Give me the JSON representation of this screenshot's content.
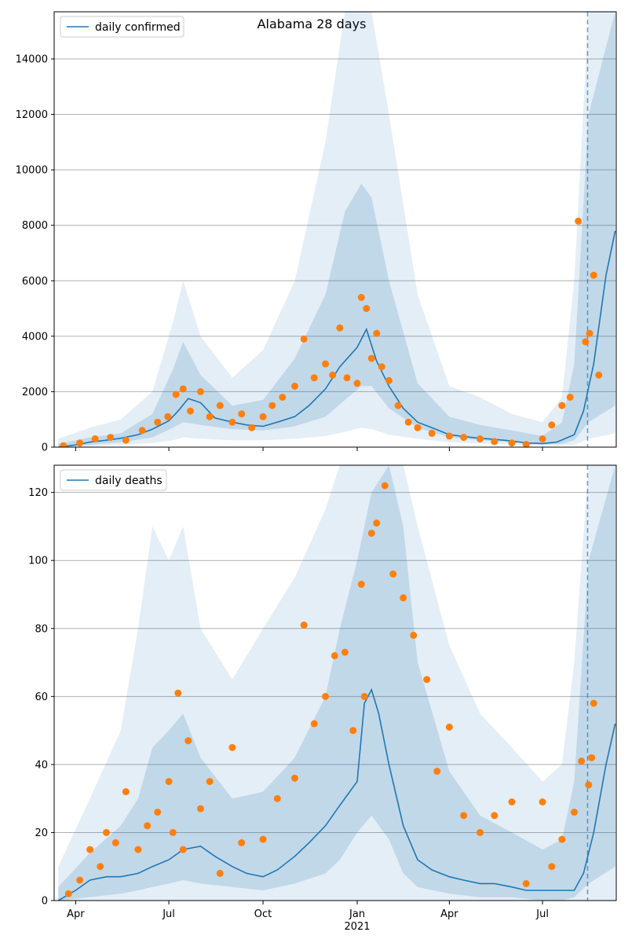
{
  "figure": {
    "title": "Alabama 28 days"
  },
  "colors": {
    "line": "#1f77b4",
    "points": "#ff7f0e",
    "band": "#1f77b4",
    "grid": "#b0b0b0"
  },
  "chart_data": [
    {
      "type": "line",
      "title": "Alabama 28 days",
      "legend": {
        "label": "daily confirmed",
        "placement": "top-left"
      },
      "ylim": [
        0,
        15700
      ],
      "y_ticks": [
        0,
        2000,
        4000,
        6000,
        8000,
        10000,
        12000,
        14000
      ],
      "y_tick_labels": [
        "0",
        "2000",
        "4000",
        "6000",
        "8000",
        "10000",
        "12000",
        "14000"
      ],
      "grid": "horizontal",
      "forecast_start": "2021-08-14",
      "series": [
        {
          "name": "daily confirmed",
          "role": "model-median",
          "x": [
            "2020-03-15",
            "2020-04-01",
            "2020-04-15",
            "2020-05-01",
            "2020-05-15",
            "2020-06-01",
            "2020-06-15",
            "2020-07-01",
            "2020-07-10",
            "2020-07-20",
            "2020-08-01",
            "2020-08-15",
            "2020-09-01",
            "2020-09-15",
            "2020-10-01",
            "2020-10-15",
            "2020-11-01",
            "2020-11-15",
            "2020-12-01",
            "2020-12-15",
            "2021-01-01",
            "2021-01-10",
            "2021-01-20",
            "2021-02-01",
            "2021-02-15",
            "2021-03-01",
            "2021-03-15",
            "2021-04-01",
            "2021-04-15",
            "2021-05-01",
            "2021-05-15",
            "2021-06-01",
            "2021-06-15",
            "2021-07-01",
            "2021-07-15",
            "2021-08-01",
            "2021-08-10",
            "2021-08-20",
            "2021-09-01",
            "2021-09-10"
          ],
          "y": [
            0,
            80,
            180,
            250,
            320,
            450,
            650,
            950,
            1300,
            1750,
            1600,
            1050,
            900,
            800,
            750,
            900,
            1100,
            1500,
            2100,
            2900,
            3600,
            4250,
            3100,
            2200,
            1400,
            900,
            700,
            450,
            380,
            320,
            280,
            220,
            150,
            130,
            180,
            450,
            1300,
            3000,
            6200,
            7800
          ]
        },
        {
          "name": "",
          "role": "observed",
          "x": [
            "2020-03-20",
            "2020-04-05",
            "2020-04-20",
            "2020-05-05",
            "2020-05-20",
            "2020-06-05",
            "2020-06-20",
            "2020-06-30",
            "2020-07-08",
            "2020-07-15",
            "2020-07-22",
            "2020-08-01",
            "2020-08-10",
            "2020-08-20",
            "2020-09-01",
            "2020-09-10",
            "2020-09-20",
            "2020-10-01",
            "2020-10-10",
            "2020-10-20",
            "2020-11-01",
            "2020-11-10",
            "2020-11-20",
            "2020-12-01",
            "2020-12-08",
            "2020-12-15",
            "2020-12-22",
            "2021-01-01",
            "2021-01-05",
            "2021-01-10",
            "2021-01-15",
            "2021-01-20",
            "2021-01-25",
            "2021-02-01",
            "2021-02-10",
            "2021-02-20",
            "2021-03-01",
            "2021-03-15",
            "2021-04-01",
            "2021-04-15",
            "2021-05-01",
            "2021-05-15",
            "2021-06-01",
            "2021-06-15",
            "2021-07-01",
            "2021-07-10",
            "2021-07-20",
            "2021-07-28",
            "2021-08-05",
            "2021-08-12",
            "2021-08-16",
            "2021-08-20",
            "2021-08-25"
          ],
          "y": [
            50,
            150,
            300,
            350,
            250,
            600,
            900,
            1100,
            1900,
            2100,
            1300,
            2000,
            1100,
            1500,
            900,
            1200,
            700,
            1100,
            1500,
            1800,
            2200,
            3900,
            2500,
            3000,
            2600,
            4300,
            2500,
            2300,
            5400,
            5000,
            3200,
            4100,
            2900,
            2400,
            1500,
            900,
            700,
            500,
            400,
            350,
            300,
            200,
            150,
            100,
            300,
            800,
            1500,
            1800,
            8150,
            3800,
            4100,
            6200,
            2600
          ]
        }
      ],
      "bands": [
        {
          "name": "outer",
          "x": [
            "2020-03-15",
            "2020-04-15",
            "2020-05-15",
            "2020-06-15",
            "2020-07-05",
            "2020-07-15",
            "2020-08-01",
            "2020-09-01",
            "2020-10-01",
            "2020-11-01",
            "2020-12-01",
            "2020-12-20",
            "2021-01-05",
            "2021-01-15",
            "2021-02-01",
            "2021-03-01",
            "2021-04-01",
            "2021-05-01",
            "2021-06-01",
            "2021-07-01",
            "2021-07-20",
            "2021-08-01",
            "2021-08-15",
            "2021-09-10"
          ],
          "lo": [
            0,
            30,
            80,
            150,
            250,
            350,
            300,
            250,
            250,
            300,
            400,
            550,
            700,
            650,
            450,
            300,
            180,
            140,
            100,
            50,
            60,
            80,
            300,
            500
          ],
          "hi": [
            300,
            700,
            1000,
            2000,
            4500,
            6000,
            4000,
            2500,
            3500,
            6000,
            11000,
            15700,
            15700,
            15700,
            12000,
            5500,
            2200,
            1800,
            1200,
            900,
            1800,
            6000,
            15700,
            15700
          ]
        },
        {
          "name": "inner",
          "x": [
            "2020-03-15",
            "2020-04-15",
            "2020-05-15",
            "2020-06-15",
            "2020-07-05",
            "2020-07-15",
            "2020-08-01",
            "2020-09-01",
            "2020-10-01",
            "2020-11-01",
            "2020-12-01",
            "2020-12-20",
            "2021-01-05",
            "2021-01-15",
            "2021-02-01",
            "2021-03-01",
            "2021-04-01",
            "2021-05-01",
            "2021-06-01",
            "2021-07-01",
            "2021-07-20",
            "2021-08-01",
            "2021-08-15",
            "2021-09-10"
          ],
          "lo": [
            0,
            80,
            180,
            350,
            700,
            900,
            800,
            650,
            600,
            750,
            1100,
            1700,
            2200,
            2200,
            1400,
            700,
            350,
            250,
            180,
            100,
            120,
            250,
            900,
            1500
          ],
          "hi": [
            120,
            350,
            500,
            1200,
            2800,
            3800,
            2600,
            1500,
            1700,
            3200,
            5500,
            8500,
            9500,
            9000,
            6000,
            2300,
            1100,
            800,
            600,
            400,
            900,
            3000,
            12000,
            15700
          ]
        }
      ],
      "x_ticks": [
        "2020-04-01",
        "2020-07-01",
        "2020-10-01",
        "2021-01-01",
        "2021-04-01",
        "2021-07-01"
      ],
      "x_tick_labels": []
    },
    {
      "type": "line",
      "title": "",
      "legend": {
        "label": "daily deaths",
        "placement": "top-left"
      },
      "ylim": [
        0,
        128
      ],
      "y_ticks": [
        0,
        20,
        40,
        60,
        80,
        100,
        120
      ],
      "y_tick_labels": [
        "0",
        "20",
        "40",
        "60",
        "80",
        "100",
        "120"
      ],
      "grid": "horizontal",
      "forecast_start": "2021-08-14",
      "series": [
        {
          "name": "daily deaths",
          "role": "model-median",
          "x": [
            "2020-03-15",
            "2020-04-01",
            "2020-04-15",
            "2020-05-01",
            "2020-05-15",
            "2020-06-01",
            "2020-06-15",
            "2020-07-01",
            "2020-07-15",
            "2020-08-01",
            "2020-08-15",
            "2020-09-01",
            "2020-09-15",
            "2020-10-01",
            "2020-10-15",
            "2020-11-01",
            "2020-11-15",
            "2020-12-01",
            "2020-12-15",
            "2021-01-01",
            "2021-01-08",
            "2021-01-15",
            "2021-01-22",
            "2021-02-01",
            "2021-02-15",
            "2021-03-01",
            "2021-03-15",
            "2021-04-01",
            "2021-04-15",
            "2021-05-01",
            "2021-05-15",
            "2021-06-01",
            "2021-06-15",
            "2021-07-01",
            "2021-07-15",
            "2021-08-01",
            "2021-08-10",
            "2021-08-20",
            "2021-09-01",
            "2021-09-10"
          ],
          "y": [
            0,
            3,
            6,
            7,
            7,
            8,
            10,
            12,
            15,
            16,
            13,
            10,
            8,
            7,
            9,
            13,
            17,
            22,
            28,
            35,
            58,
            62,
            55,
            40,
            22,
            12,
            9,
            7,
            6,
            5,
            5,
            4,
            3,
            3,
            3,
            3,
            8,
            20,
            40,
            52
          ]
        },
        {
          "name": "",
          "role": "observed",
          "x": [
            "2020-03-25",
            "2020-04-05",
            "2020-04-15",
            "2020-04-25",
            "2020-05-01",
            "2020-05-10",
            "2020-05-20",
            "2020-06-01",
            "2020-06-10",
            "2020-06-20",
            "2020-07-01",
            "2020-07-05",
            "2020-07-10",
            "2020-07-15",
            "2020-07-20",
            "2020-08-01",
            "2020-08-10",
            "2020-08-20",
            "2020-09-01",
            "2020-09-10",
            "2020-10-01",
            "2020-10-15",
            "2020-11-01",
            "2020-11-10",
            "2020-11-20",
            "2020-12-01",
            "2020-12-10",
            "2020-12-20",
            "2020-12-28",
            "2021-01-05",
            "2021-01-08",
            "2021-01-15",
            "2021-01-20",
            "2021-01-28",
            "2021-02-05",
            "2021-02-15",
            "2021-02-25",
            "2021-03-10",
            "2021-03-20",
            "2021-04-01",
            "2021-04-15",
            "2021-05-01",
            "2021-05-15",
            "2021-06-01",
            "2021-06-15",
            "2021-07-01",
            "2021-07-10",
            "2021-07-20",
            "2021-08-01",
            "2021-08-08",
            "2021-08-15",
            "2021-08-18",
            "2021-08-20"
          ],
          "y": [
            2,
            6,
            15,
            10,
            20,
            17,
            32,
            15,
            22,
            26,
            35,
            20,
            61,
            15,
            47,
            27,
            35,
            8,
            45,
            17,
            18,
            30,
            36,
            81,
            52,
            60,
            72,
            73,
            50,
            93,
            60,
            108,
            111,
            122,
            96,
            89,
            78,
            65,
            38,
            51,
            25,
            20,
            25,
            29,
            5,
            29,
            10,
            18,
            26,
            41,
            34,
            42,
            58
          ]
        }
      ],
      "bands": [
        {
          "name": "outer",
          "x": [
            "2020-03-15",
            "2020-04-15",
            "2020-05-15",
            "2020-06-01",
            "2020-06-15",
            "2020-07-01",
            "2020-07-15",
            "2020-08-01",
            "2020-09-01",
            "2020-10-01",
            "2020-11-01",
            "2020-12-01",
            "2020-12-15",
            "2021-01-01",
            "2021-01-15",
            "2021-02-01",
            "2021-02-15",
            "2021-03-01",
            "2021-04-01",
            "2021-05-01",
            "2021-06-01",
            "2021-07-01",
            "2021-07-20",
            "2021-08-01",
            "2021-08-15",
            "2021-09-10"
          ],
          "lo": [
            0,
            0,
            0,
            0,
            0,
            0,
            0,
            0,
            0,
            0,
            0,
            0,
            0,
            0,
            0,
            0,
            0,
            0,
            0,
            0,
            0,
            0,
            0,
            0,
            0,
            0
          ],
          "hi": [
            10,
            30,
            50,
            80,
            110,
            100,
            110,
            80,
            65,
            80,
            95,
            115,
            128,
            128,
            128,
            128,
            128,
            110,
            75,
            55,
            45,
            35,
            40,
            70,
            128,
            128
          ]
        },
        {
          "name": "inner",
          "x": [
            "2020-03-15",
            "2020-04-15",
            "2020-05-15",
            "2020-06-01",
            "2020-06-15",
            "2020-07-01",
            "2020-07-15",
            "2020-08-01",
            "2020-09-01",
            "2020-10-01",
            "2020-11-01",
            "2020-12-01",
            "2020-12-15",
            "2021-01-01",
            "2021-01-15",
            "2021-02-01",
            "2021-02-15",
            "2021-03-01",
            "2021-04-01",
            "2021-05-01",
            "2021-06-01",
            "2021-07-01",
            "2021-07-20",
            "2021-08-01",
            "2021-08-15",
            "2021-09-10"
          ],
          "lo": [
            0,
            1,
            2,
            3,
            4,
            5,
            6,
            5,
            4,
            3,
            5,
            8,
            12,
            20,
            25,
            18,
            8,
            4,
            2,
            1,
            1,
            0,
            0,
            1,
            5,
            10
          ],
          "hi": [
            4,
            14,
            22,
            30,
            45,
            50,
            55,
            42,
            30,
            32,
            42,
            60,
            80,
            100,
            120,
            128,
            110,
            70,
            38,
            25,
            20,
            15,
            18,
            35,
            100,
            128
          ]
        }
      ],
      "x_ticks": [
        "2020-04-01",
        "2020-07-01",
        "2020-10-01",
        "2021-01-01",
        "2021-04-01",
        "2021-07-01"
      ],
      "x_tick_labels": [
        "Apr",
        "Jul",
        "Oct",
        "Jan",
        "Apr",
        "Jul"
      ],
      "x_year_label": "2021"
    }
  ]
}
